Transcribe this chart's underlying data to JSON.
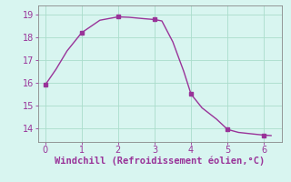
{
  "x": [
    0,
    0.3,
    0.6,
    1.0,
    1.5,
    2.0,
    2.3,
    2.7,
    3.0,
    3.2,
    3.5,
    3.8,
    4.0,
    4.3,
    4.7,
    5.0,
    5.3,
    5.7,
    6.0,
    6.2
  ],
  "y": [
    15.9,
    16.6,
    17.4,
    18.2,
    18.75,
    18.9,
    18.88,
    18.82,
    18.78,
    18.72,
    17.8,
    16.5,
    15.5,
    14.9,
    14.4,
    13.95,
    13.82,
    13.75,
    13.7,
    13.68
  ],
  "marker_x": [
    0,
    1.0,
    2.0,
    3.0,
    4.0,
    5.0,
    6.0
  ],
  "marker_y": [
    15.9,
    18.2,
    18.9,
    18.78,
    15.5,
    13.95,
    13.7
  ],
  "line_color": "#993399",
  "marker_color": "#993399",
  "bg_color": "#d8f5f0",
  "grid_color": "#aaddcc",
  "xlabel": "Windchill (Refroidissement éolien,°C)",
  "xlabel_color": "#993399",
  "tick_color": "#993399",
  "spine_color": "#888888",
  "xlim": [
    -0.2,
    6.5
  ],
  "ylim": [
    13.4,
    19.4
  ],
  "xticks": [
    0,
    1,
    2,
    3,
    4,
    5,
    6
  ],
  "yticks": [
    14,
    15,
    16,
    17,
    18,
    19
  ],
  "xlabel_fontsize": 7.5,
  "tick_fontsize": 7,
  "marker_size": 3,
  "linewidth": 1.0
}
